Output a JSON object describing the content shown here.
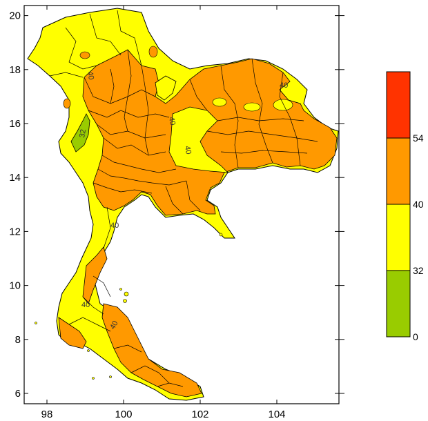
{
  "map": {
    "x_ticks": [
      "98",
      "100",
      "102",
      "104"
    ],
    "y_ticks": [
      "6",
      "8",
      "10",
      "12",
      "14",
      "16",
      "18",
      "20"
    ],
    "contour_labels": [
      "40",
      "40",
      "40",
      "40",
      "40",
      "40",
      "40"
    ],
    "contour_32_labels": [
      "32"
    ],
    "colors": {
      "land_low": "#99cc00",
      "land_mid": "#ffff00",
      "land_high": "#ff9900",
      "land_top": "#ff3300",
      "border": "#000000"
    }
  },
  "legend": {
    "bins": [
      {
        "range": "0-32",
        "color": "#99cc00"
      },
      {
        "range": "32-40",
        "color": "#ffff00"
      },
      {
        "range": "40-54",
        "color": "#ff9900"
      },
      {
        "range": "54+",
        "color": "#ff3300"
      }
    ],
    "labels": [
      "54",
      "40",
      "32",
      "0"
    ]
  }
}
